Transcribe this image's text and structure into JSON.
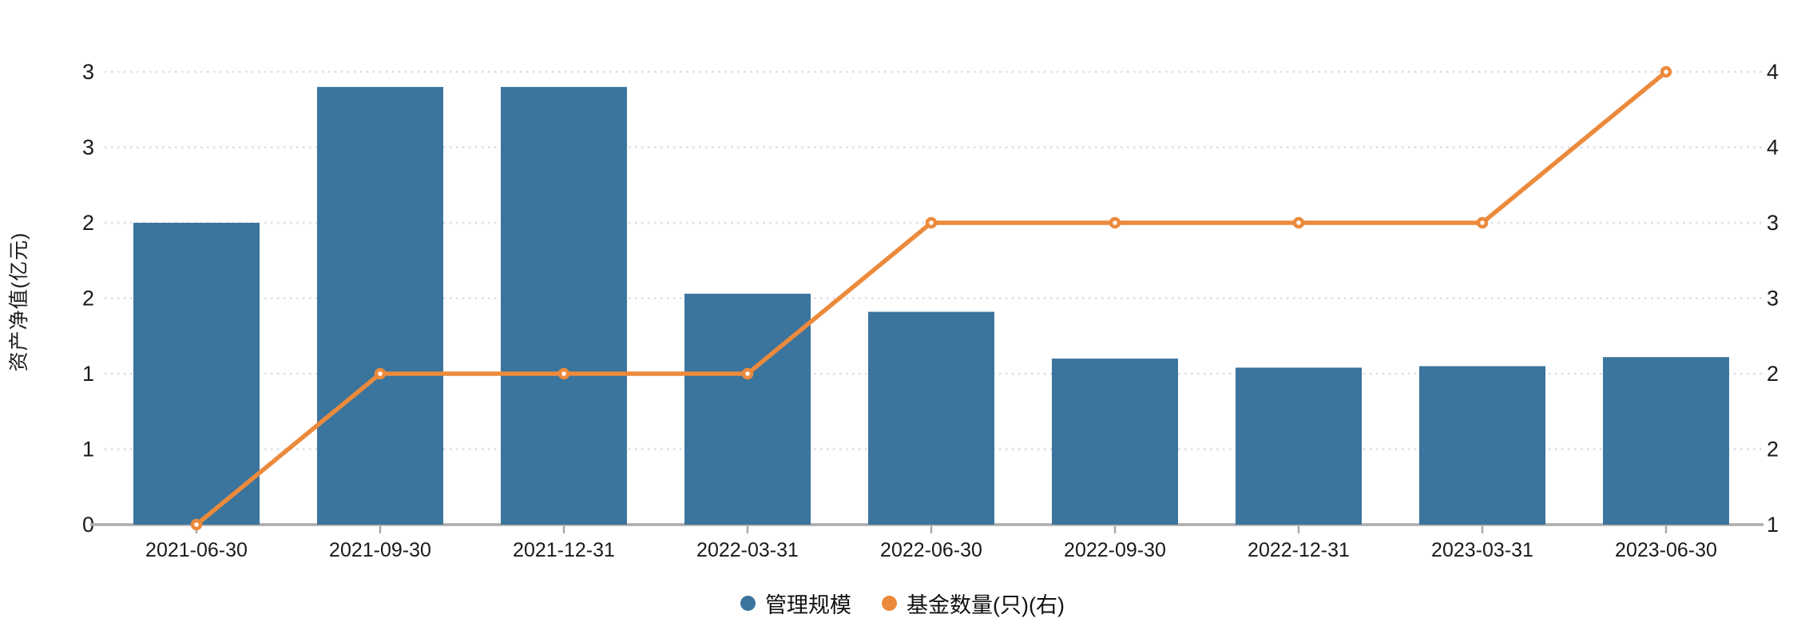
{
  "colors": {
    "bar": "#3B749D",
    "line": "#EC8A3C",
    "axis_line": "#ababab",
    "grid_line": "#dcdce9",
    "tick_text": "#1a1a1a",
    "background": "#ffffff"
  },
  "legend": {
    "items": [
      {
        "label": "管理规模",
        "color": "#3B749D"
      },
      {
        "label": "基金数量(只)(右)",
        "color": "#EC8A3C"
      }
    ]
  },
  "chart_data": {
    "type": "bar",
    "subtype": "bar-line-combo",
    "categories": [
      "2021-06-30",
      "2021-09-30",
      "2021-12-31",
      "2022-03-31",
      "2022-06-30",
      "2022-09-30",
      "2022-12-31",
      "2023-03-31",
      "2023-06-30"
    ],
    "series": [
      {
        "name": "管理规模",
        "type": "bar",
        "axis": "left",
        "color": "#3B749D",
        "values": [
          2.0,
          2.9,
          2.9,
          1.53,
          1.41,
          1.1,
          1.04,
          1.05,
          1.11
        ]
      },
      {
        "name": "基金数量(只)(右)",
        "type": "line",
        "axis": "right",
        "color": "#EC8A3C",
        "values": [
          1,
          2,
          2,
          2,
          3,
          3,
          3,
          3,
          4
        ]
      }
    ],
    "title": "",
    "xlabel": "",
    "ylabel": "资产净值(亿元)",
    "left_axis": {
      "min": 0,
      "max": 3,
      "step": 0.5,
      "tick_labels": [
        "0",
        "1",
        "1",
        "2",
        "2",
        "3",
        "3"
      ]
    },
    "right_axis": {
      "min": 1,
      "max": 4,
      "step": 0.5,
      "tick_labels": [
        "1",
        "2",
        "2",
        "3",
        "3",
        "4",
        "4"
      ]
    },
    "grid": "horizontal-dotted",
    "legend_position": "bottom-center"
  }
}
